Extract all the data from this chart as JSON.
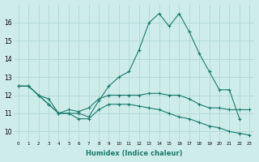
{
  "xlabel": "Humidex (Indice chaleur)",
  "x": [
    0,
    1,
    2,
    3,
    4,
    5,
    6,
    7,
    8,
    9,
    10,
    11,
    12,
    13,
    14,
    15,
    16,
    17,
    18,
    19,
    20,
    21,
    22,
    23
  ],
  "line1": [
    12.5,
    12.5,
    12.0,
    11.5,
    11.0,
    11.0,
    11.0,
    10.8,
    11.7,
    12.5,
    13.0,
    13.3,
    14.5,
    16.0,
    16.5,
    15.8,
    16.5,
    15.5,
    14.3,
    13.3,
    12.3,
    12.3,
    10.7,
    null
  ],
  "line2": [
    12.5,
    12.5,
    12.0,
    11.8,
    11.0,
    11.2,
    11.1,
    11.3,
    11.8,
    12.0,
    12.0,
    12.0,
    12.0,
    12.1,
    12.1,
    12.0,
    12.0,
    11.8,
    11.5,
    11.3,
    11.3,
    11.2,
    11.2,
    11.2
  ],
  "line3": [
    12.5,
    12.5,
    12.0,
    11.5,
    11.0,
    11.0,
    10.7,
    10.7,
    11.2,
    11.5,
    11.5,
    11.5,
    11.4,
    11.3,
    11.2,
    11.0,
    10.8,
    10.7,
    10.5,
    10.3,
    10.2,
    10.0,
    9.9,
    9.8
  ],
  "bg_color": "#ceecea",
  "grid_color": "#afd8d4",
  "line_color": "#1a7a6e",
  "ylim": [
    9.5,
    17.0
  ],
  "xlim": [
    -0.5,
    23.5
  ],
  "yticks": [
    10,
    11,
    12,
    13,
    14,
    15,
    16
  ],
  "xtick_labels": [
    "0",
    "1",
    "2",
    "3",
    "4",
    "5",
    "6",
    "7",
    "8",
    "9",
    "10",
    "11",
    "12",
    "13",
    "14",
    "15",
    "16",
    "17",
    "18",
    "19",
    "20",
    "21",
    "22",
    "23"
  ]
}
